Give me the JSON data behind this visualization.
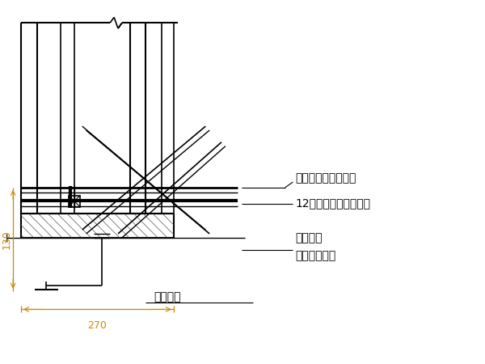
{
  "bg_color": "#ffffff",
  "line_color": "#000000",
  "dim_color": "#cc8800",
  "text_color": "#000000",
  "label_wailian": "外连杆（周转使用）",
  "label_12hao": "12号槽钉（周转使用）",
  "label_lianjie1": "连接螺母",
  "label_lianjie2": "（周转使用）",
  "label_dijiao": "地脚螺栋",
  "dim_130": "130",
  "dim_270": "270"
}
